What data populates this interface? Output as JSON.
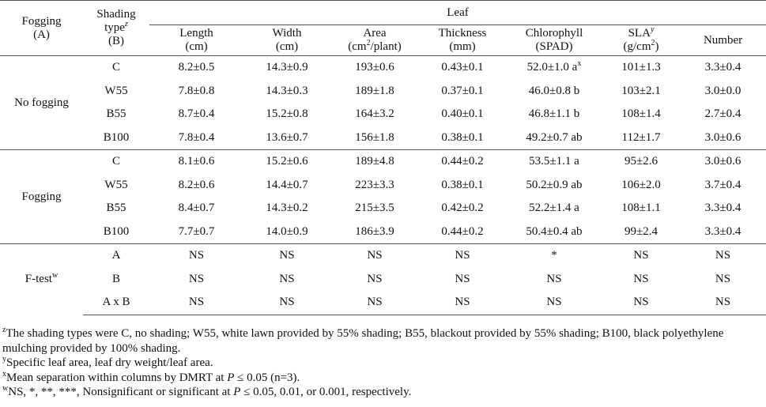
{
  "headers": {
    "fogging_line1": "Fogging",
    "fogging_line2": "(A)",
    "shading_line1": "Shading",
    "shading_line2": "type",
    "shading_sup": "z",
    "shading_line3": "(B)",
    "leaf_group": "Leaf",
    "columns": [
      {
        "line1": "Length",
        "line2": "(cm)"
      },
      {
        "line1": "Width",
        "line2": "(cm)"
      },
      {
        "line1": "Area",
        "line2a": "(cm",
        "line2sup": "2",
        "line2b": "/plant)"
      },
      {
        "line1": "Thickness",
        "line2": "(mm)"
      },
      {
        "line1": "Chlorophyll",
        "line2": "(SPAD)"
      },
      {
        "line1": "SLA",
        "line1sup": "y",
        "line2a": "(g/cm",
        "line2sup": "2",
        "line2b": ")"
      },
      {
        "line1": "Number"
      }
    ]
  },
  "groups": [
    {
      "label": "No fogging",
      "rows": [
        {
          "type": "C",
          "cells": [
            "8.2±0.5",
            "14.3±0.9",
            "193±0.6",
            "0.43±0.1",
            "52.0±1.0 a",
            "101±1.3",
            "3.3±0.4"
          ],
          "chl_sup": "x"
        },
        {
          "type": "W55",
          "cells": [
            "7.8±0.8",
            "14.3±0.3",
            "189±1.8",
            "0.37±0.1",
            "46.0±0.8 b",
            "103±2.1",
            "3.0±0.0"
          ]
        },
        {
          "type": "B55",
          "cells": [
            "8.7±0.4",
            "15.2±0.8",
            "164±3.2",
            "0.40±0.1",
            "46.8±1.1 b",
            "108±1.4",
            "2.7±0.4"
          ]
        },
        {
          "type": "B100",
          "cells": [
            "7.8±0.4",
            "13.6±0.7",
            "156±1.8",
            "0.38±0.1",
            "49.2±0.7 ab",
            "112±1.7",
            "3.0±0.6"
          ]
        }
      ]
    },
    {
      "label": "Fogging",
      "rows": [
        {
          "type": "C",
          "cells": [
            "8.1±0.6",
            "15.2±0.6",
            "189±4.8",
            "0.44±0.2",
            "53.5±1.1 a",
            "95±2.6",
            "3.0±0.6"
          ]
        },
        {
          "type": "W55",
          "cells": [
            "8.2±0.6",
            "14.4±0.7",
            "223±3.3",
            "0.38±0.1",
            "50.2±0.9 ab",
            "106±2.0",
            "3.7±0.4"
          ]
        },
        {
          "type": "B55",
          "cells": [
            "8.4±0.7",
            "14.3±0.2",
            "215±3.5",
            "0.42±0.2",
            "52.2±1.4 a",
            "108±1.1",
            "3.3±0.4"
          ]
        },
        {
          "type": "B100",
          "cells": [
            "7.7±0.7",
            "14.0±0.9",
            "186±3.9",
            "0.44±0.2",
            "50.4±0.4 ab",
            "99±2.4",
            "3.3±0.4"
          ]
        }
      ]
    },
    {
      "label": "F-test",
      "label_sup": "w",
      "rows": [
        {
          "type": "A",
          "cells": [
            "NS",
            "NS",
            "NS",
            "NS",
            "*",
            "NS",
            "NS"
          ]
        },
        {
          "type": "B",
          "cells": [
            "NS",
            "NS",
            "NS",
            "NS",
            "NS",
            "NS",
            "NS"
          ]
        },
        {
          "type": "A x B",
          "cells": [
            "NS",
            "NS",
            "NS",
            "NS",
            "NS",
            "NS",
            "NS"
          ]
        }
      ]
    }
  ],
  "footnotes": {
    "z_sup": "z",
    "z_text": "The shading types were C, no shading; W55, white lawn provided by 55% shading; B55, blackout provided by 55% shading; B100, black polyethylene mulching provided by 100% shading.",
    "y_sup": "y",
    "y_text": "Specific leaf area, leaf dry weight/leaf area.",
    "x_sup": "x",
    "x_text_a": "Mean separation within columns by DMRT at ",
    "x_p": "P",
    "x_text_b": " ≤ 0.05 (n=3).",
    "w_sup": "w",
    "w_text_a": "NS, *, **, ***, Nonsignificant or significant at ",
    "w_p": "P",
    "w_text_b": " ≤ 0.05, 0.01, or 0.001, respectively."
  }
}
